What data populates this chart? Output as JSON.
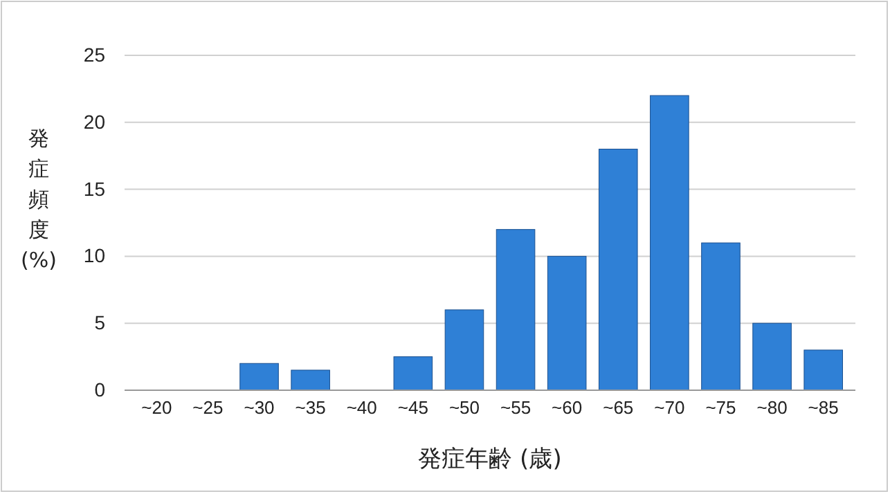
{
  "chart_data": {
    "type": "bar",
    "categories": [
      "~20",
      "~25",
      "~30",
      "~35",
      "~40",
      "~45",
      "~50",
      "~55",
      "~60",
      "~65",
      "~70",
      "~75",
      "~80",
      "~85"
    ],
    "values": [
      0,
      0,
      2,
      1.5,
      0,
      2.5,
      6,
      12,
      10,
      18,
      22,
      11,
      5,
      3
    ],
    "color": "#2f80d6",
    "xlabel": "発症年齢 (歳)",
    "ylabel": "発症頻度(%)",
    "ylim": [
      0,
      25
    ],
    "yticks": [
      0,
      5,
      10,
      15,
      20,
      25
    ],
    "grid": "y"
  }
}
